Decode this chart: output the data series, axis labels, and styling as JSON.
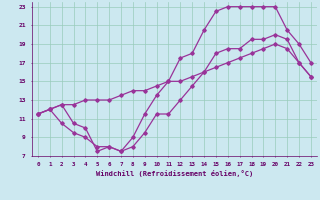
{
  "bg_color": "#cce8f0",
  "line_color": "#993399",
  "grid_color": "#99ccbb",
  "xlabel": "Windchill (Refroidissement éolien,°C)",
  "xlabel_color": "#660066",
  "tick_color": "#660066",
  "xlim": [
    -0.5,
    23.5
  ],
  "ylim": [
    7,
    23.5
  ],
  "yticks": [
    7,
    9,
    11,
    13,
    15,
    17,
    19,
    21,
    23
  ],
  "xticks": [
    0,
    1,
    2,
    3,
    4,
    5,
    6,
    7,
    8,
    9,
    10,
    11,
    12,
    13,
    14,
    15,
    16,
    17,
    18,
    19,
    20,
    21,
    22,
    23
  ],
  "line_upper_x": [
    0,
    1,
    2,
    3,
    4,
    5,
    6,
    7,
    8,
    9,
    10,
    11,
    12,
    13,
    14,
    15,
    16,
    17,
    18,
    19,
    20,
    21,
    22,
    23
  ],
  "line_upper_y": [
    11.5,
    12.0,
    12.5,
    10.5,
    10.0,
    7.5,
    8.0,
    7.5,
    9.0,
    11.5,
    13.5,
    15.0,
    17.5,
    18.0,
    20.5,
    22.5,
    23.0,
    23.0,
    23.0,
    23.0,
    23.0,
    20.5,
    19.0,
    17.0
  ],
  "line_lower_x": [
    0,
    1,
    2,
    3,
    4,
    5,
    6,
    7,
    8,
    9,
    10,
    11,
    12,
    13,
    14,
    15,
    16,
    17,
    18,
    19,
    20,
    21,
    22,
    23
  ],
  "line_lower_y": [
    11.5,
    12.0,
    10.5,
    9.5,
    9.0,
    8.0,
    8.0,
    7.5,
    8.0,
    9.5,
    11.5,
    11.5,
    13.0,
    14.5,
    16.0,
    18.0,
    18.5,
    18.5,
    19.5,
    19.5,
    20.0,
    19.5,
    17.0,
    15.5
  ],
  "line_mid_x": [
    0,
    1,
    2,
    3,
    4,
    5,
    6,
    7,
    8,
    9,
    10,
    11,
    12,
    13,
    14,
    15,
    16,
    17,
    18,
    19,
    20,
    21,
    22,
    23
  ],
  "line_mid_y": [
    11.5,
    12.0,
    12.5,
    12.5,
    13.0,
    13.0,
    13.0,
    13.5,
    14.0,
    14.0,
    14.5,
    15.0,
    15.0,
    15.5,
    16.0,
    16.5,
    17.0,
    17.5,
    18.0,
    18.5,
    19.0,
    18.5,
    17.0,
    15.5
  ]
}
